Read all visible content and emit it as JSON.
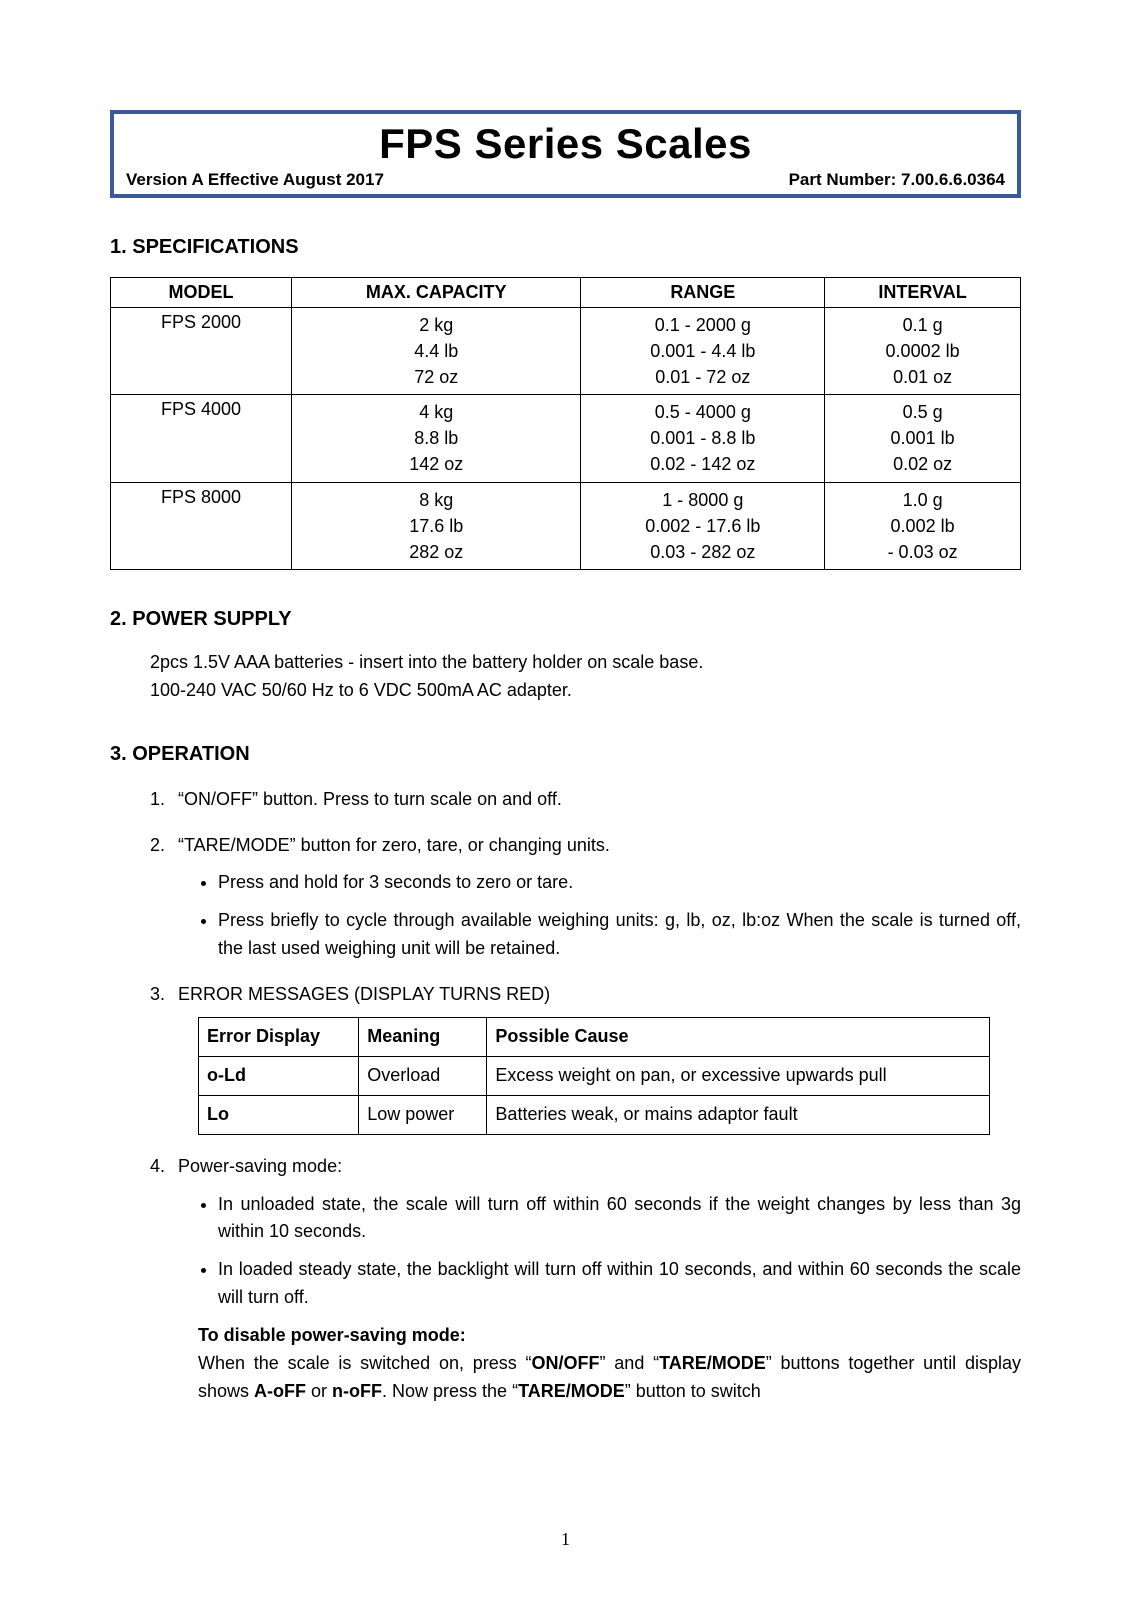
{
  "header": {
    "title": "FPS Series Scales",
    "version": "Version A Effective August 2017",
    "part": "Part Number: 7.00.6.6.0364"
  },
  "sections": {
    "spec_title": "1. SPECIFICATIONS",
    "power_title": "2. POWER SUPPLY",
    "op_title": "3. OPERATION"
  },
  "spec_table": {
    "columns": [
      "MODEL",
      "MAX. CAPACITY",
      "RANGE",
      "INTERVAL"
    ],
    "rows": [
      {
        "model": "FPS 2000",
        "cap": [
          "2 kg",
          "4.4 lb",
          "72 oz"
        ],
        "range": [
          "0.1 - 2000 g",
          "0.001 - 4.4 lb",
          "0.01 - 72 oz"
        ],
        "int": [
          "0.1 g",
          "0.0002 lb",
          "0.01 oz"
        ]
      },
      {
        "model": "FPS 4000",
        "cap": [
          "4 kg",
          "8.8 lb",
          "142 oz"
        ],
        "range": [
          "0.5 - 4000 g",
          "0.001 - 8.8 lb",
          "0.02 - 142 oz"
        ],
        "int": [
          "0.5 g",
          "0.001 lb",
          "0.02 oz"
        ]
      },
      {
        "model": "FPS 8000",
        "cap": [
          "8 kg",
          "17.6 lb",
          "282 oz"
        ],
        "range": [
          "1 - 8000 g",
          "0.002 - 17.6 lb",
          "0.03 - 282 oz"
        ],
        "int": [
          "1.0 g",
          "0.002 lb",
          "- 0.03 oz"
        ]
      }
    ]
  },
  "power": {
    "line1": "2pcs 1.5V AAA batteries - insert into the battery holder on scale base.",
    "line2": "100-240 VAC 50/60 Hz to 6 VDC 500mA AC adapter."
  },
  "operation": {
    "item1": "“ON/OFF” button. Press to turn scale on and off.",
    "item2": "“TARE/MODE” button for zero, tare, or changing units.",
    "item2_sub1": "Press and hold for 3 seconds to zero or tare.",
    "item2_sub2": "Press briefly to cycle through available weighing units: g, lb, oz, lb:oz When the scale is turned off, the last used weighing unit will be retained.",
    "item3": "ERROR MESSAGES (DISPLAY TURNS RED)",
    "item4": "Power-saving mode:",
    "item4_sub1": "In unloaded state, the scale will turn off within 60 seconds if the weight changes by less than 3g within 10 seconds.",
    "item4_sub2": "In loaded steady state, the backlight will turn off within 10 seconds, and within 60 seconds the scale will turn off.",
    "disable_hdr": "To disable power-saving mode:",
    "disable_pre": "When the scale is switched on, press “",
    "disable_b1": "ON/OFF",
    "disable_mid1": "” and “",
    "disable_b2": "TARE/MODE",
    "disable_mid2": "” buttons together until display shows ",
    "disable_b3": "A-oFF",
    "disable_or": " or ",
    "disable_b4": "n-oFF",
    "disable_mid3": ". Now press the “",
    "disable_b5": "TARE/MODE",
    "disable_end": "” button to switch"
  },
  "err_table": {
    "columns": [
      "Error Display",
      "Meaning",
      "Possible Cause"
    ],
    "rows": [
      {
        "d": "o-Ld",
        "m": "Overload",
        "c": "Excess weight on pan, or excessive upwards pull"
      },
      {
        "d": "Lo",
        "m": "Low power",
        "c": "Batteries weak, or mains adaptor fault"
      }
    ]
  },
  "page_number": "1"
}
